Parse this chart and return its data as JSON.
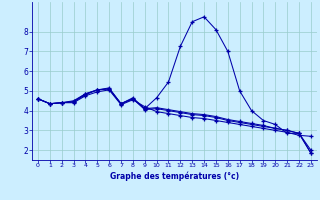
{
  "xlabel": "Graphe des températures (°c)",
  "background_color": "#cceeff",
  "line_color": "#0000aa",
  "grid_color": "#99cccc",
  "xlim": [
    -0.5,
    23.5
  ],
  "ylim": [
    1.5,
    9.5
  ],
  "xticks": [
    0,
    1,
    2,
    3,
    4,
    5,
    6,
    7,
    8,
    9,
    10,
    11,
    12,
    13,
    14,
    15,
    16,
    17,
    18,
    19,
    20,
    21,
    22,
    23
  ],
  "yticks": [
    2,
    3,
    4,
    5,
    6,
    7,
    8
  ],
  "series": [
    {
      "x": [
        0,
        1,
        2,
        3,
        4,
        5,
        6,
        7,
        8,
        9,
        10,
        11,
        12,
        13,
        14,
        15,
        16,
        17,
        18,
        19,
        20,
        21,
        22,
        23
      ],
      "y": [
        4.6,
        4.35,
        4.4,
        4.5,
        4.85,
        5.05,
        5.15,
        4.35,
        4.65,
        4.1,
        4.65,
        5.45,
        7.25,
        8.5,
        8.75,
        8.1,
        7.0,
        5.0,
        4.0,
        3.5,
        3.3,
        2.85,
        2.85,
        1.85
      ]
    },
    {
      "x": [
        0,
        1,
        2,
        3,
        4,
        5,
        6,
        7,
        8,
        9,
        10,
        11,
        12,
        13,
        14,
        15,
        16,
        17,
        18,
        19,
        20,
        21,
        22,
        23
      ],
      "y": [
        4.6,
        4.35,
        4.4,
        4.4,
        4.75,
        4.95,
        5.05,
        4.3,
        4.55,
        4.2,
        3.95,
        3.85,
        3.75,
        3.65,
        3.6,
        3.5,
        3.4,
        3.3,
        3.2,
        3.1,
        3.0,
        2.9,
        2.75,
        2.7
      ]
    },
    {
      "x": [
        0,
        1,
        2,
        3,
        4,
        5,
        6,
        7,
        8,
        9,
        10,
        11,
        12,
        13,
        14,
        15,
        16,
        17,
        18,
        19,
        20,
        21,
        22,
        23
      ],
      "y": [
        4.6,
        4.35,
        4.4,
        4.45,
        4.8,
        5.05,
        5.1,
        4.35,
        4.6,
        4.05,
        4.1,
        4.0,
        3.9,
        3.8,
        3.75,
        3.65,
        3.5,
        3.4,
        3.3,
        3.2,
        3.1,
        3.0,
        2.85,
        1.85
      ]
    },
    {
      "x": [
        0,
        1,
        2,
        3,
        4,
        5,
        6,
        7,
        8,
        9,
        10,
        11,
        12,
        13,
        14,
        15,
        16,
        17,
        18,
        19,
        20,
        21,
        22,
        23
      ],
      "y": [
        4.6,
        4.35,
        4.4,
        4.45,
        4.85,
        5.05,
        5.1,
        4.35,
        4.6,
        4.1,
        4.15,
        4.05,
        3.95,
        3.85,
        3.8,
        3.7,
        3.55,
        3.45,
        3.35,
        3.25,
        3.1,
        3.0,
        2.85,
        2.0
      ]
    }
  ]
}
